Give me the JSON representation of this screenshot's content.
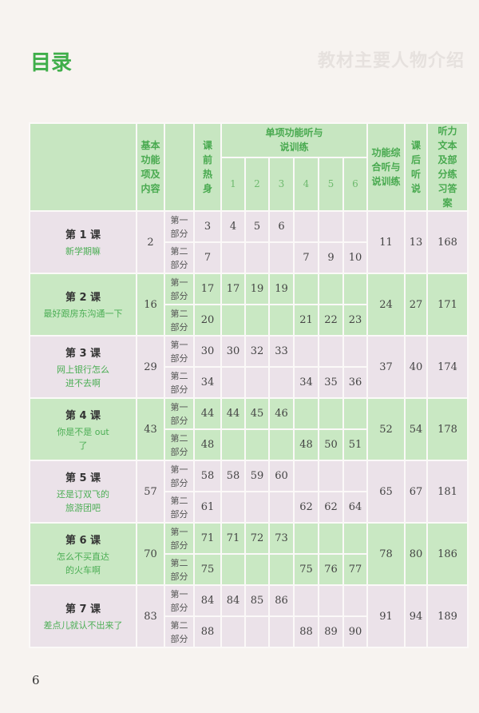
{
  "page": {
    "title": "目录",
    "faded_heading": "教材主要人物介绍",
    "page_number": "6"
  },
  "header": {
    "basic": "基本功能项及内容",
    "pre": "课前热身",
    "single": "单项功能听与说训练",
    "sub_columns": [
      "1",
      "2",
      "3",
      "4",
      "5",
      "6"
    ],
    "integrated": "功能综合听与说训练",
    "after": "课后听说",
    "answers": "听力文本及部分练习答案"
  },
  "part_labels": [
    "第一部分",
    "第二部分"
  ],
  "lessons": [
    {
      "name": "第 1 课",
      "subtitle": "新学期嘛",
      "basic": "2",
      "parts": [
        {
          "pre": "3",
          "items": [
            "4",
            "5",
            "6",
            "",
            "",
            ""
          ]
        },
        {
          "pre": "7",
          "items": [
            "",
            "",
            "",
            "7",
            "9",
            "10"
          ]
        }
      ],
      "integrated": "11",
      "after": "13",
      "answers": "168"
    },
    {
      "name": "第 2 课",
      "subtitle": "最好跟房东沟通一下",
      "basic": "16",
      "parts": [
        {
          "pre": "17",
          "items": [
            "17",
            "19",
            "19",
            "",
            "",
            ""
          ]
        },
        {
          "pre": "20",
          "items": [
            "",
            "",
            "",
            "21",
            "22",
            "23"
          ]
        }
      ],
      "integrated": "24",
      "after": "27",
      "answers": "171"
    },
    {
      "name": "第 3 课",
      "subtitle": "网上银行怎么进不去啊",
      "basic": "29",
      "parts": [
        {
          "pre": "30",
          "items": [
            "30",
            "32",
            "33",
            "",
            "",
            ""
          ]
        },
        {
          "pre": "34",
          "items": [
            "",
            "",
            "",
            "34",
            "35",
            "36"
          ]
        }
      ],
      "integrated": "37",
      "after": "40",
      "answers": "174"
    },
    {
      "name": "第 4 课",
      "subtitle": "你是不是 out 了",
      "basic": "43",
      "parts": [
        {
          "pre": "44",
          "items": [
            "44",
            "45",
            "46",
            "",
            "",
            ""
          ]
        },
        {
          "pre": "48",
          "items": [
            "",
            "",
            "",
            "48",
            "50",
            "51"
          ]
        }
      ],
      "integrated": "52",
      "after": "54",
      "answers": "178"
    },
    {
      "name": "第 5 课",
      "subtitle": "还是订双飞的旅游团吧",
      "basic": "57",
      "parts": [
        {
          "pre": "58",
          "items": [
            "58",
            "59",
            "60",
            "",
            "",
            ""
          ]
        },
        {
          "pre": "61",
          "items": [
            "",
            "",
            "",
            "62",
            "62",
            "64"
          ]
        }
      ],
      "integrated": "65",
      "after": "67",
      "answers": "181"
    },
    {
      "name": "第 6 课",
      "subtitle": "怎么不买直达的火车啊",
      "basic": "70",
      "parts": [
        {
          "pre": "71",
          "items": [
            "71",
            "72",
            "73",
            "",
            "",
            ""
          ]
        },
        {
          "pre": "75",
          "items": [
            "",
            "",
            "",
            "75",
            "76",
            "77"
          ]
        }
      ],
      "integrated": "78",
      "after": "80",
      "answers": "186"
    },
    {
      "name": "第 7 课",
      "subtitle": "差点儿就认不出来了",
      "basic": "83",
      "parts": [
        {
          "pre": "84",
          "items": [
            "84",
            "85",
            "86",
            "",
            "",
            ""
          ]
        },
        {
          "pre": "88",
          "items": [
            "",
            "",
            "",
            "88",
            "89",
            "90"
          ]
        }
      ],
      "integrated": "91",
      "after": "94",
      "answers": "189"
    }
  ]
}
